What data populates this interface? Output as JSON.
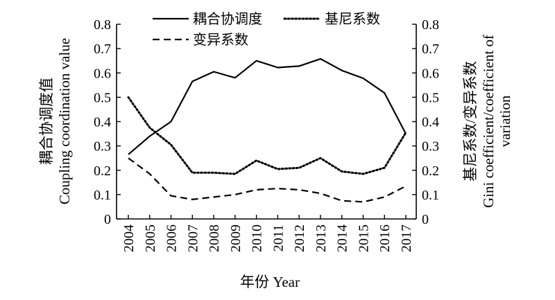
{
  "chart_data": {
    "type": "line",
    "categories": [
      "2004",
      "2005",
      "2006",
      "2007",
      "2008",
      "2009",
      "2010",
      "2011",
      "2012",
      "2013",
      "2014",
      "2015",
      "2016",
      "2017"
    ],
    "series": [
      {
        "name": "耦合协调度",
        "axis": "left",
        "style": "solid",
        "values": [
          0.265,
          0.34,
          0.4,
          0.565,
          0.605,
          0.58,
          0.65,
          0.622,
          0.628,
          0.658,
          0.61,
          0.578,
          0.518,
          0.35
        ]
      },
      {
        "name": "基尼系数",
        "axis": "right",
        "style": "dotted",
        "values": [
          0.5,
          0.375,
          0.305,
          0.19,
          0.19,
          0.185,
          0.24,
          0.205,
          0.21,
          0.25,
          0.195,
          0.185,
          0.21,
          0.355
        ]
      },
      {
        "name": "变异系数",
        "axis": "right",
        "style": "dashed",
        "values": [
          0.25,
          0.185,
          0.095,
          0.08,
          0.09,
          0.1,
          0.12,
          0.125,
          0.12,
          0.105,
          0.075,
          0.07,
          0.09,
          0.135
        ]
      }
    ],
    "xlabel": "年份 Year",
    "ylabel_left": [
      "耦合协调度值",
      "Coupling coordination value"
    ],
    "ylabel_right": [
      "基尼系数/变异系数",
      "Gini coefficient/coefficient of",
      "variation"
    ],
    "ylim": [
      0,
      0.8
    ],
    "yticks": [
      "0",
      "0.1",
      "0.2",
      "0.3",
      "0.4",
      "0.5",
      "0.6",
      "0.7",
      "0.8"
    ],
    "legend_position": "top",
    "grid": false
  }
}
